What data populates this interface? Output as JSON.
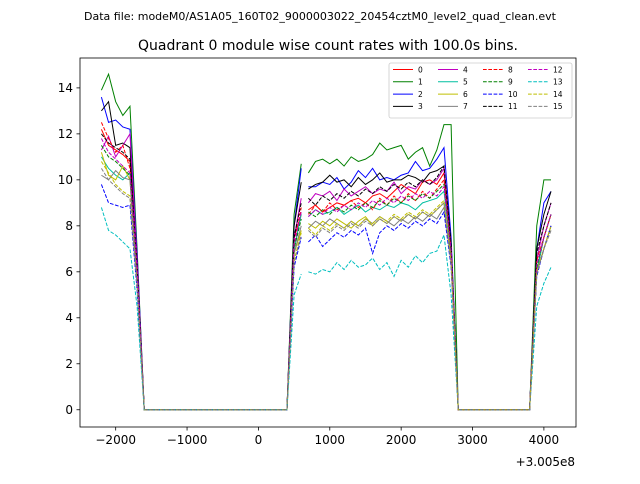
{
  "suptitle": "Data file: modeM0/AS1A05_160T02_9000003022_20454cztM0_level2_quad_clean.evt",
  "chart_data": {
    "type": "line",
    "title": "Quadrant 0 module wise count rates with 100.0s bins.",
    "xlabel": "",
    "ylabel": "",
    "x_offset_label": "+3.005e8",
    "xlim": [
      -2500,
      4450
    ],
    "ylim": [
      -0.75,
      15.3
    ],
    "xticks": [
      -2000,
      -1000,
      0,
      1000,
      2000,
      3000,
      4000
    ],
    "xtick_labels": [
      "−2000",
      "−1000",
      "0",
      "1000",
      "2000",
      "3000",
      "4000"
    ],
    "yticks": [
      0,
      2,
      4,
      6,
      8,
      10,
      12,
      14
    ],
    "ytick_labels": [
      "0",
      "2",
      "4",
      "6",
      "8",
      "10",
      "12",
      "14"
    ],
    "grid": false,
    "legend_position": "top-right",
    "x": [
      -2200,
      -2100,
      -2000,
      -1900,
      -1800,
      -1700,
      -1600,
      -1500,
      -1400,
      -1300,
      -1200,
      -1100,
      -1000,
      -900,
      -800,
      -700,
      -600,
      -500,
      -400,
      -300,
      -200,
      -100,
      0,
      100,
      200,
      300,
      400,
      500,
      600,
      700,
      800,
      900,
      1000,
      1100,
      1200,
      1300,
      1400,
      1500,
      1600,
      1700,
      1800,
      1900,
      2000,
      2100,
      2200,
      2300,
      2400,
      2500,
      2600,
      2700,
      2800,
      2900,
      3000,
      3100,
      3200,
      3300,
      3400,
      3500,
      3600,
      3700,
      3800,
      3900,
      4000,
      4100
    ],
    "gaps_after_index": [
      28,
      63
    ],
    "series": [
      {
        "name": "0",
        "color": "#ff0000",
        "dash": "solid",
        "values": [
          12.2,
          11.5,
          11.3,
          11.1,
          10.8,
          6.5,
          0,
          0,
          0,
          0,
          0,
          0,
          0,
          0,
          0,
          0,
          0,
          0,
          0,
          0,
          0,
          0,
          0,
          0,
          0,
          0,
          0,
          7.5,
          8.5,
          8.7,
          8.9,
          8.6,
          8.8,
          9.0,
          8.9,
          9.1,
          9.2,
          9.0,
          9.3,
          9.4,
          9.2,
          9.5,
          9.8,
          9.6,
          9.4,
          9.9,
          10.0,
          9.8,
          10.3,
          7.0,
          0,
          0,
          0,
          0,
          0,
          0,
          0,
          0,
          0,
          0,
          0,
          6.0,
          7.5,
          8.5
        ]
      },
      {
        "name": "1",
        "color": "#008000",
        "dash": "solid",
        "values": [
          13.9,
          14.6,
          13.4,
          12.8,
          13.2,
          7.0,
          0,
          0,
          0,
          0,
          0,
          0,
          0,
          0,
          0,
          0,
          0,
          0,
          0,
          0,
          0,
          0,
          0,
          0,
          0,
          0,
          0,
          8.5,
          10.7,
          10.3,
          10.8,
          10.9,
          10.7,
          10.9,
          10.6,
          11.0,
          10.8,
          10.9,
          11.1,
          11.6,
          11.3,
          11.4,
          11.5,
          10.9,
          11.2,
          11.4,
          10.6,
          11.3,
          12.4,
          12.4,
          0,
          0,
          0,
          0,
          0,
          0,
          0,
          0,
          0,
          0,
          0,
          8.0,
          10.0,
          10.0
        ]
      },
      {
        "name": "2",
        "color": "#0000ff",
        "dash": "solid",
        "values": [
          13.6,
          12.5,
          12.6,
          12.3,
          12.2,
          6.8,
          0,
          0,
          0,
          0,
          0,
          0,
          0,
          0,
          0,
          0,
          0,
          0,
          0,
          0,
          0,
          0,
          0,
          0,
          0,
          0,
          0,
          8.0,
          10.5,
          9.7,
          9.7,
          9.9,
          9.8,
          10.1,
          9.6,
          9.9,
          10.4,
          10.1,
          10.5,
          10.0,
          10.1,
          10.0,
          10.2,
          10.3,
          10.8,
          10.4,
          10.5,
          10.9,
          11.4,
          7.5,
          0,
          0,
          0,
          0,
          0,
          0,
          0,
          0,
          0,
          0,
          0,
          7.0,
          9.0,
          9.5
        ]
      },
      {
        "name": "3",
        "color": "#000000",
        "dash": "solid",
        "values": [
          13.0,
          13.4,
          11.5,
          11.6,
          11.4,
          6.2,
          0,
          0,
          0,
          0,
          0,
          0,
          0,
          0,
          0,
          0,
          0,
          0,
          0,
          0,
          0,
          0,
          0,
          0,
          0,
          0,
          0,
          8.0,
          9.9,
          9.6,
          9.8,
          9.9,
          10.2,
          9.9,
          10.0,
          9.7,
          10.1,
          9.8,
          10.0,
          10.3,
          9.9,
          10.0,
          10.0,
          10.2,
          10.1,
          9.9,
          10.3,
          10.4,
          10.6,
          7.2,
          0,
          0,
          0,
          0,
          0,
          0,
          0,
          0,
          0,
          0,
          0,
          7.0,
          8.5,
          9.5
        ]
      },
      {
        "name": "4",
        "color": "#c000c0",
        "dash": "solid",
        "values": [
          11.3,
          11.9,
          11.0,
          11.5,
          12.0,
          6.5,
          0,
          0,
          0,
          0,
          0,
          0,
          0,
          0,
          0,
          0,
          0,
          0,
          0,
          0,
          0,
          0,
          0,
          0,
          0,
          0,
          0,
          7.5,
          9.2,
          9.0,
          9.4,
          9.3,
          9.5,
          9.1,
          9.6,
          9.3,
          9.5,
          9.7,
          9.4,
          9.6,
          9.5,
          9.9,
          9.4,
          9.7,
          9.6,
          10.0,
          9.8,
          10.0,
          10.5,
          7.0,
          0,
          0,
          0,
          0,
          0,
          0,
          0,
          0,
          0,
          0,
          0,
          6.5,
          8.0,
          9.0
        ]
      },
      {
        "name": "5",
        "color": "#00bfa0",
        "dash": "solid",
        "values": [
          11.0,
          10.5,
          10.2,
          10.0,
          10.3,
          6.0,
          0,
          0,
          0,
          0,
          0,
          0,
          0,
          0,
          0,
          0,
          0,
          0,
          0,
          0,
          0,
          0,
          0,
          0,
          0,
          0,
          0,
          7.0,
          8.5,
          8.4,
          8.7,
          8.5,
          8.6,
          8.8,
          8.5,
          8.7,
          8.9,
          8.6,
          8.8,
          8.7,
          8.9,
          8.8,
          9.0,
          8.9,
          8.7,
          9.0,
          9.1,
          9.2,
          9.5,
          6.8,
          0,
          0,
          0,
          0,
          0,
          0,
          0,
          0,
          0,
          0,
          0,
          6.0,
          7.5,
          8.5
        ]
      },
      {
        "name": "6",
        "color": "#bfbf00",
        "dash": "solid",
        "values": [
          11.2,
          10.2,
          10.0,
          10.6,
          10.0,
          5.8,
          0,
          0,
          0,
          0,
          0,
          0,
          0,
          0,
          0,
          0,
          0,
          0,
          0,
          0,
          0,
          0,
          0,
          0,
          0,
          0,
          0,
          6.8,
          7.8,
          8.1,
          7.9,
          8.2,
          8.0,
          8.3,
          8.1,
          7.9,
          8.2,
          8.4,
          8.0,
          8.3,
          8.1,
          8.4,
          8.2,
          8.5,
          8.3,
          8.6,
          8.4,
          8.7,
          9.0,
          6.5,
          0,
          0,
          0,
          0,
          0,
          0,
          0,
          0,
          0,
          0,
          0,
          6.0,
          7.0,
          8.0
        ]
      },
      {
        "name": "7",
        "color": "#808080",
        "dash": "solid",
        "values": [
          10.2,
          10.0,
          10.4,
          10.1,
          10.0,
          5.7,
          0,
          0,
          0,
          0,
          0,
          0,
          0,
          0,
          0,
          0,
          0,
          0,
          0,
          0,
          0,
          0,
          0,
          0,
          0,
          0,
          0,
          6.8,
          8.0,
          7.9,
          8.2,
          8.0,
          8.3,
          8.1,
          7.9,
          8.2,
          8.0,
          8.3,
          8.1,
          8.4,
          8.2,
          8.0,
          8.3,
          8.1,
          8.4,
          8.2,
          8.5,
          8.3,
          8.8,
          6.5,
          0,
          0,
          0,
          0,
          0,
          0,
          0,
          0,
          0,
          0,
          0,
          6.0,
          7.0,
          8.0
        ]
      },
      {
        "name": "8",
        "color": "#ff0000",
        "dash": "dashed",
        "values": [
          12.5,
          11.8,
          11.2,
          11.5,
          10.5,
          6.2,
          0,
          0,
          0,
          0,
          0,
          0,
          0,
          0,
          0,
          0,
          0,
          0,
          0,
          0,
          0,
          0,
          0,
          0,
          0,
          0,
          0,
          7.2,
          8.8,
          8.5,
          8.9,
          8.6,
          9.0,
          8.7,
          8.9,
          9.1,
          8.8,
          9.0,
          8.7,
          9.2,
          8.9,
          9.3,
          9.0,
          9.4,
          9.1,
          9.5,
          9.2,
          9.6,
          10.0,
          7.0,
          0,
          0,
          0,
          0,
          0,
          0,
          0,
          0,
          0,
          0,
          0,
          6.5,
          7.5,
          8.5
        ]
      },
      {
        "name": "9",
        "color": "#008000",
        "dash": "dashed",
        "values": [
          11.5,
          11.0,
          10.8,
          10.5,
          10.2,
          6.0,
          0,
          0,
          0,
          0,
          0,
          0,
          0,
          0,
          0,
          0,
          0,
          0,
          0,
          0,
          0,
          0,
          0,
          0,
          0,
          0,
          0,
          7.0,
          8.3,
          8.6,
          8.4,
          8.7,
          8.5,
          8.8,
          8.6,
          8.9,
          8.7,
          9.0,
          8.8,
          9.1,
          8.9,
          9.2,
          9.0,
          9.3,
          9.1,
          9.4,
          9.2,
          9.5,
          9.8,
          6.8,
          0,
          0,
          0,
          0,
          0,
          0,
          0,
          0,
          0,
          0,
          0,
          6.2,
          7.5,
          8.5
        ]
      },
      {
        "name": "10",
        "color": "#0000ff",
        "dash": "dashed",
        "values": [
          9.8,
          9.0,
          8.9,
          8.8,
          8.9,
          5.2,
          0,
          0,
          0,
          0,
          0,
          0,
          0,
          0,
          0,
          0,
          0,
          0,
          0,
          0,
          0,
          0,
          0,
          0,
          0,
          0,
          0,
          6.2,
          7.5,
          7.3,
          7.6,
          7.1,
          7.4,
          7.7,
          7.5,
          7.8,
          7.6,
          7.9,
          6.8,
          7.7,
          8.0,
          7.8,
          8.1,
          7.9,
          8.2,
          8.0,
          8.3,
          8.1,
          8.6,
          6.2,
          0,
          0,
          0,
          0,
          0,
          0,
          0,
          0,
          0,
          0,
          0,
          5.8,
          7.0,
          8.0
        ]
      },
      {
        "name": "11",
        "color": "#000000",
        "dash": "dashed",
        "values": [
          12.0,
          11.6,
          11.4,
          11.2,
          10.9,
          6.3,
          0,
          0,
          0,
          0,
          0,
          0,
          0,
          0,
          0,
          0,
          0,
          0,
          0,
          0,
          0,
          0,
          0,
          0,
          0,
          0,
          0,
          7.5,
          9.0,
          9.2,
          8.9,
          9.3,
          9.1,
          9.4,
          9.2,
          9.5,
          9.3,
          9.6,
          9.4,
          9.7,
          9.5,
          9.8,
          9.6,
          9.9,
          9.7,
          10.0,
          9.8,
          10.1,
          10.6,
          7.2,
          0,
          0,
          0,
          0,
          0,
          0,
          0,
          0,
          0,
          0,
          0,
          6.8,
          8.0,
          9.0
        ]
      },
      {
        "name": "12",
        "color": "#c000c0",
        "dash": "dashed",
        "values": [
          11.8,
          11.2,
          10.9,
          10.6,
          10.3,
          6.1,
          0,
          0,
          0,
          0,
          0,
          0,
          0,
          0,
          0,
          0,
          0,
          0,
          0,
          0,
          0,
          0,
          0,
          0,
          0,
          0,
          0,
          7.2,
          8.6,
          8.4,
          8.7,
          8.5,
          8.8,
          8.6,
          8.9,
          8.7,
          9.0,
          8.8,
          9.1,
          8.9,
          9.2,
          9.0,
          9.3,
          9.1,
          9.4,
          9.2,
          9.5,
          9.3,
          9.7,
          6.9,
          0,
          0,
          0,
          0,
          0,
          0,
          0,
          0,
          0,
          0,
          0,
          6.3,
          7.5,
          8.5
        ]
      },
      {
        "name": "13",
        "color": "#00bfbf",
        "dash": "dashed",
        "values": [
          8.8,
          7.8,
          7.6,
          7.3,
          7.0,
          4.5,
          0,
          0,
          0,
          0,
          0,
          0,
          0,
          0,
          0,
          0,
          0,
          0,
          0,
          0,
          0,
          0,
          0,
          0,
          0,
          0,
          0,
          5.0,
          5.9,
          6.0,
          5.9,
          6.1,
          6.0,
          6.4,
          6.1,
          6.5,
          6.2,
          6.3,
          6.6,
          6.1,
          6.4,
          5.8,
          6.5,
          6.2,
          6.7,
          6.4,
          6.8,
          6.9,
          7.6,
          5.0,
          0,
          0,
          0,
          0,
          0,
          0,
          0,
          0,
          0,
          0,
          0,
          4.5,
          5.5,
          6.2
        ]
      },
      {
        "name": "14",
        "color": "#bfbf00",
        "dash": "dashed",
        "values": [
          10.8,
          10.3,
          9.8,
          9.5,
          9.3,
          5.5,
          0,
          0,
          0,
          0,
          0,
          0,
          0,
          0,
          0,
          0,
          0,
          0,
          0,
          0,
          0,
          0,
          0,
          0,
          0,
          0,
          0,
          6.5,
          7.7,
          7.9,
          7.6,
          8.0,
          7.8,
          8.1,
          7.9,
          8.2,
          8.0,
          8.3,
          8.1,
          8.4,
          8.2,
          8.5,
          8.3,
          8.6,
          8.4,
          8.7,
          8.5,
          8.8,
          9.1,
          6.4,
          0,
          0,
          0,
          0,
          0,
          0,
          0,
          0,
          0,
          0,
          0,
          6.0,
          7.0,
          8.0
        ]
      },
      {
        "name": "15",
        "color": "#808080",
        "dash": "dashed",
        "values": [
          10.5,
          10.0,
          9.7,
          9.4,
          9.2,
          5.4,
          0,
          0,
          0,
          0,
          0,
          0,
          0,
          0,
          0,
          0,
          0,
          0,
          0,
          0,
          0,
          0,
          0,
          0,
          0,
          0,
          0,
          6.4,
          7.6,
          7.8,
          7.5,
          7.9,
          7.7,
          8.0,
          7.8,
          8.1,
          7.9,
          8.2,
          8.0,
          8.3,
          8.1,
          8.4,
          8.2,
          8.5,
          8.3,
          8.6,
          8.4,
          8.7,
          9.0,
          6.3,
          0,
          0,
          0,
          0,
          0,
          0,
          0,
          0,
          0,
          0,
          0,
          5.9,
          7.0,
          7.8
        ]
      }
    ]
  }
}
